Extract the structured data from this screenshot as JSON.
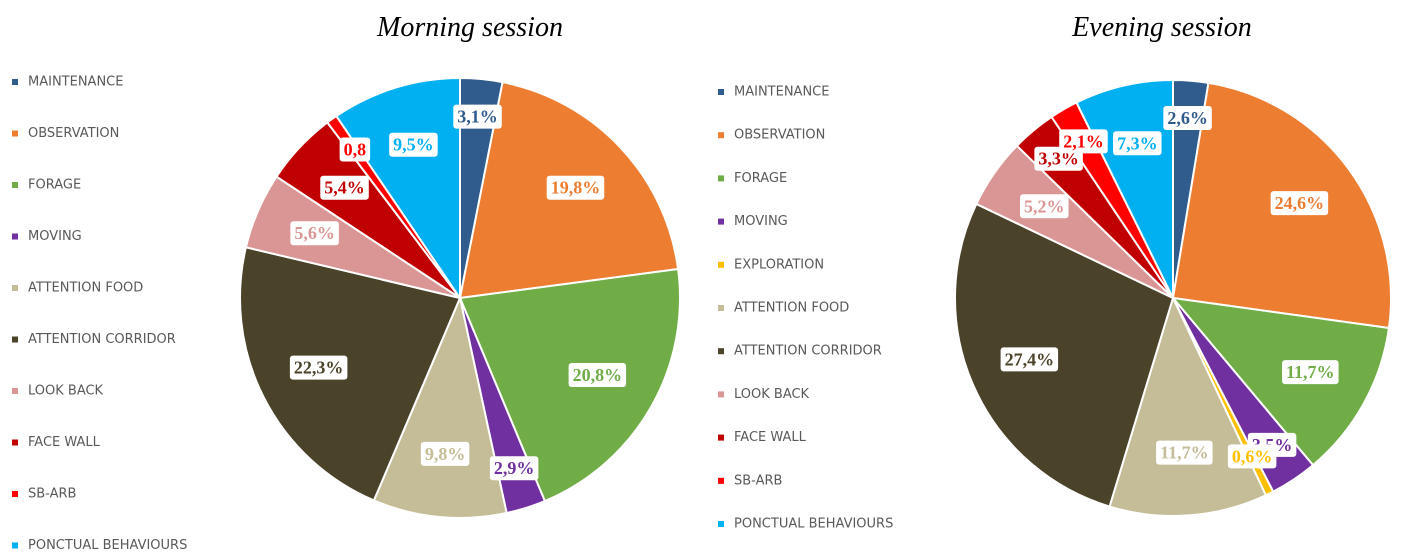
{
  "chart_data": [
    {
      "type": "pie",
      "title": "Morning session",
      "categories": [
        "MAINTENANCE",
        "OBSERVATION",
        "FORAGE",
        "MOVING",
        "ATTENTION FOOD",
        "ATTENTION CORRIDOR",
        "LOOK BACK",
        "FACE WALL",
        "SB-ARB",
        "PONCTUAL BEHAVIOURS"
      ],
      "values": [
        3.1,
        19.8,
        20.8,
        2.9,
        9.8,
        22.3,
        5.6,
        5.4,
        0.8,
        9.5
      ],
      "value_labels": [
        "3,1%",
        "19,8%",
        "20,8%",
        "2,9%",
        "9,8%",
        "22,3%",
        "5,6%",
        "5,4%",
        "0,8",
        "9,5%"
      ],
      "colors": [
        "#2f5b8d",
        "#ed7d31",
        "#70ad47",
        "#7030a0",
        "#c4bd97",
        "#4a4229",
        "#d99694",
        "#c00000",
        "#ff0000",
        "#00b0f0"
      ]
    },
    {
      "type": "pie",
      "title": "Evening session",
      "categories": [
        "MAINTENANCE",
        "OBSERVATION",
        "FORAGE",
        "MOVING",
        "EXPLORATION",
        "ATTENTION FOOD",
        "ATTENTION CORRIDOR",
        "LOOK BACK",
        "FACE WALL",
        "SB-ARB",
        "PONCTUAL BEHAVIOURS"
      ],
      "values": [
        2.6,
        24.6,
        11.7,
        3.5,
        0.6,
        11.7,
        27.4,
        5.2,
        3.3,
        2.1,
        7.3
      ],
      "value_labels": [
        "2,6%",
        "24,6%",
        "11,7%",
        "3,5%",
        "0,6%",
        "11,7%",
        "27,4%",
        "5,2%",
        "3,3%",
        "2,1%",
        "7,3%"
      ],
      "colors": [
        "#2f5b8d",
        "#ed7d31",
        "#70ad47",
        "#7030a0",
        "#ffc000",
        "#c4bd97",
        "#4a4229",
        "#d99694",
        "#c00000",
        "#ff0000",
        "#00b0f0"
      ]
    }
  ]
}
